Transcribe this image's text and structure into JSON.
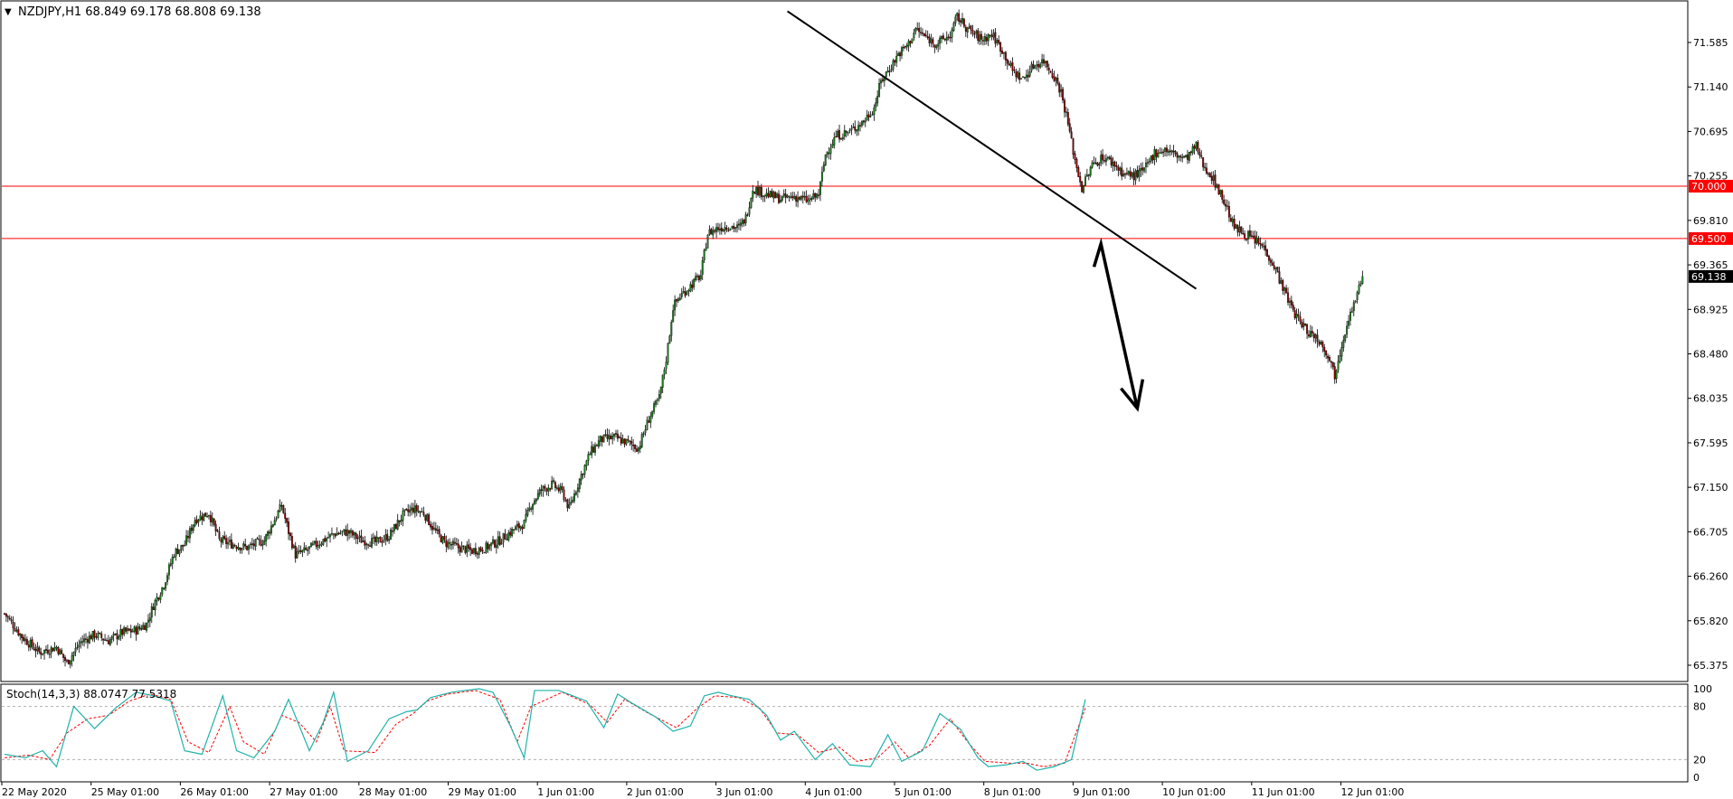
{
  "chart_data": {
    "type": "candlestick",
    "symbol_header": "NZDJPY,H1  68.849 69.178 68.808 69.138",
    "x_labels": [
      "22 May 2020",
      "25 May 01:00",
      "26 May 01:00",
      "27 May 01:00",
      "28 May 01:00",
      "29 May 01:00",
      "1 Jun 01:00",
      "2 Jun 01:00",
      "3 Jun 01:00",
      "4 Jun 01:00",
      "5 Jun 01:00",
      "8 Jun 01:00",
      "9 Jun 01:00",
      "10 Jun 01:00",
      "11 Jun 01:00",
      "12 Jun 01:00"
    ],
    "y_ticks": [
      "71.585",
      "71.140",
      "70.695",
      "70.255",
      "69.810",
      "69.365",
      "68.925",
      "68.480",
      "68.035",
      "67.595",
      "67.150",
      "66.705",
      "66.260",
      "65.820",
      "65.375"
    ],
    "price_range": [
      65.28,
      71.76
    ],
    "close_path": [
      [
        0,
        65.92
      ],
      [
        10,
        65.7
      ],
      [
        20,
        65.55
      ],
      [
        30,
        65.6
      ],
      [
        36,
        65.45
      ],
      [
        44,
        65.65
      ],
      [
        52,
        65.72
      ],
      [
        60,
        65.66
      ],
      [
        68,
        65.74
      ],
      [
        76,
        65.76
      ],
      [
        82,
        65.82
      ],
      [
        86,
        66.0
      ],
      [
        92,
        66.2
      ],
      [
        98,
        66.5
      ],
      [
        104,
        66.58
      ],
      [
        110,
        66.82
      ],
      [
        118,
        66.88
      ],
      [
        124,
        66.62
      ],
      [
        132,
        66.58
      ],
      [
        140,
        66.55
      ],
      [
        150,
        66.62
      ],
      [
        156,
        66.82
      ],
      [
        160,
        66.95
      ],
      [
        164,
        66.7
      ],
      [
        168,
        66.48
      ],
      [
        174,
        66.52
      ],
      [
        182,
        66.6
      ],
      [
        190,
        66.68
      ],
      [
        198,
        66.7
      ],
      [
        206,
        66.62
      ],
      [
        214,
        66.6
      ],
      [
        222,
        66.66
      ],
      [
        230,
        66.86
      ],
      [
        236,
        66.92
      ],
      [
        242,
        66.88
      ],
      [
        248,
        66.72
      ],
      [
        254,
        66.6
      ],
      [
        262,
        66.55
      ],
      [
        270,
        66.52
      ],
      [
        278,
        66.55
      ],
      [
        286,
        66.62
      ],
      [
        294,
        66.72
      ],
      [
        300,
        66.78
      ],
      [
        304,
        66.96
      ],
      [
        310,
        67.1
      ],
      [
        316,
        67.15
      ],
      [
        322,
        67.08
      ],
      [
        326,
        66.92
      ],
      [
        332,
        67.2
      ],
      [
        338,
        67.45
      ],
      [
        344,
        67.58
      ],
      [
        352,
        67.6
      ],
      [
        360,
        67.55
      ],
      [
        366,
        67.5
      ],
      [
        372,
        67.78
      ],
      [
        378,
        67.98
      ],
      [
        382,
        68.35
      ],
      [
        386,
        68.85
      ],
      [
        390,
        68.95
      ],
      [
        396,
        69.05
      ],
      [
        402,
        69.15
      ],
      [
        406,
        69.55
      ],
      [
        412,
        69.6
      ],
      [
        418,
        69.62
      ],
      [
        424,
        69.6
      ],
      [
        428,
        69.7
      ],
      [
        432,
        69.98
      ],
      [
        440,
        69.92
      ],
      [
        448,
        69.88
      ],
      [
        456,
        69.9
      ],
      [
        464,
        69.86
      ],
      [
        470,
        69.92
      ],
      [
        474,
        70.3
      ],
      [
        480,
        70.48
      ],
      [
        488,
        70.52
      ],
      [
        496,
        70.62
      ],
      [
        502,
        70.75
      ],
      [
        506,
        71.0
      ],
      [
        510,
        71.1
      ],
      [
        516,
        71.26
      ],
      [
        522,
        71.36
      ],
      [
        526,
        71.5
      ],
      [
        532,
        71.42
      ],
      [
        538,
        71.36
      ],
      [
        546,
        71.44
      ],
      [
        550,
        71.62
      ],
      [
        556,
        71.5
      ],
      [
        564,
        71.4
      ],
      [
        570,
        71.45
      ],
      [
        576,
        71.3
      ],
      [
        582,
        71.1
      ],
      [
        588,
        71.02
      ],
      [
        594,
        71.15
      ],
      [
        600,
        71.2
      ],
      [
        606,
        71.05
      ],
      [
        610,
        70.9
      ],
      [
        614,
        70.6
      ],
      [
        618,
        70.25
      ],
      [
        622,
        69.98
      ],
      [
        628,
        70.2
      ],
      [
        634,
        70.28
      ],
      [
        640,
        70.22
      ],
      [
        646,
        70.12
      ],
      [
        652,
        70.1
      ],
      [
        658,
        70.15
      ],
      [
        664,
        70.32
      ],
      [
        670,
        70.35
      ],
      [
        676,
        70.3
      ],
      [
        682,
        70.26
      ],
      [
        688,
        70.38
      ],
      [
        692,
        70.2
      ],
      [
        696,
        70.12
      ],
      [
        700,
        70.0
      ],
      [
        706,
        69.78
      ],
      [
        710,
        69.6
      ],
      [
        716,
        69.55
      ],
      [
        722,
        69.48
      ],
      [
        728,
        69.4
      ],
      [
        734,
        69.2
      ],
      [
        740,
        68.95
      ],
      [
        746,
        68.75
      ],
      [
        752,
        68.62
      ],
      [
        758,
        68.55
      ],
      [
        764,
        68.4
      ],
      [
        768,
        68.2
      ],
      [
        772,
        68.5
      ],
      [
        776,
        68.75
      ],
      [
        780,
        68.9
      ],
      [
        784,
        69.138
      ]
    ],
    "horizontal_levels": [
      {
        "label": "70.000",
        "price": 70.0,
        "color": "#ff0000"
      },
      {
        "label": "69.500",
        "price": 69.5,
        "color": "#ff0000"
      }
    ],
    "current_price": {
      "label": "69.138",
      "price": 69.138
    },
    "trendline": {
      "from": {
        "bar": 452,
        "price": 71.67
      },
      "to": {
        "bar": 688,
        "price": 69.02
      },
      "color": "#000000"
    },
    "arrow": {
      "points": [
        {
          "bar": 629,
          "price": 69.23
        },
        {
          "bar": 633,
          "price": 69.45
        },
        {
          "bar": 654,
          "price": 67.88
        }
      ],
      "color": "#000000"
    },
    "colors": {
      "bull": "#1a7a1a",
      "bear": "#8b0000",
      "stoch_main": "#20b2aa",
      "stoch_signal": "#ff0000"
    },
    "stoch": {
      "label": "Stoch(14,3,3) 88.0747 77.5318",
      "levels": [
        "100",
        "80",
        "20",
        "0"
      ],
      "range": [
        0,
        100
      ],
      "main_path": [
        [
          0,
          26
        ],
        [
          12,
          22
        ],
        [
          22,
          30
        ],
        [
          30,
          12
        ],
        [
          40,
          80
        ],
        [
          52,
          55
        ],
        [
          64,
          78
        ],
        [
          76,
          96
        ],
        [
          86,
          92
        ],
        [
          96,
          86
        ],
        [
          104,
          30
        ],
        [
          114,
          26
        ],
        [
          126,
          92
        ],
        [
          134,
          30
        ],
        [
          144,
          22
        ],
        [
          156,
          52
        ],
        [
          164,
          88
        ],
        [
          176,
          30
        ],
        [
          184,
          62
        ],
        [
          190,
          96
        ],
        [
          198,
          18
        ],
        [
          210,
          30
        ],
        [
          222,
          66
        ],
        [
          232,
          74
        ],
        [
          238,
          76
        ],
        [
          246,
          90
        ],
        [
          258,
          96
        ],
        [
          274,
          100
        ],
        [
          282,
          96
        ],
        [
          292,
          58
        ],
        [
          300,
          22
        ],
        [
          306,
          98
        ],
        [
          320,
          98
        ],
        [
          336,
          86
        ],
        [
          346,
          56
        ],
        [
          354,
          94
        ],
        [
          362,
          84
        ],
        [
          376,
          68
        ],
        [
          386,
          52
        ],
        [
          396,
          58
        ],
        [
          404,
          92
        ],
        [
          412,
          96
        ],
        [
          420,
          92
        ],
        [
          430,
          88
        ],
        [
          440,
          70
        ],
        [
          448,
          42
        ],
        [
          456,
          52
        ],
        [
          468,
          20
        ],
        [
          478,
          38
        ],
        [
          488,
          14
        ],
        [
          500,
          12
        ],
        [
          510,
          48
        ],
        [
          518,
          18
        ],
        [
          530,
          30
        ],
        [
          540,
          72
        ],
        [
          552,
          54
        ],
        [
          562,
          22
        ],
        [
          568,
          12
        ],
        [
          578,
          14
        ],
        [
          588,
          18
        ],
        [
          596,
          8
        ],
        [
          606,
          12
        ],
        [
          616,
          20
        ],
        [
          624,
          88
        ]
      ],
      "signal_path": [
        [
          0,
          22
        ],
        [
          14,
          25
        ],
        [
          26,
          20
        ],
        [
          36,
          50
        ],
        [
          48,
          66
        ],
        [
          60,
          70
        ],
        [
          72,
          86
        ],
        [
          84,
          94
        ],
        [
          96,
          88
        ],
        [
          106,
          40
        ],
        [
          118,
          28
        ],
        [
          130,
          80
        ],
        [
          138,
          40
        ],
        [
          150,
          26
        ],
        [
          160,
          70
        ],
        [
          170,
          62
        ],
        [
          180,
          40
        ],
        [
          188,
          80
        ],
        [
          196,
          30
        ],
        [
          214,
          28
        ],
        [
          226,
          60
        ],
        [
          236,
          72
        ],
        [
          244,
          86
        ],
        [
          256,
          94
        ],
        [
          272,
          98
        ],
        [
          286,
          88
        ],
        [
          296,
          40
        ],
        [
          304,
          80
        ],
        [
          322,
          96
        ],
        [
          338,
          82
        ],
        [
          348,
          62
        ],
        [
          358,
          88
        ],
        [
          372,
          72
        ],
        [
          388,
          56
        ],
        [
          400,
          78
        ],
        [
          410,
          92
        ],
        [
          424,
          90
        ],
        [
          436,
          78
        ],
        [
          446,
          50
        ],
        [
          458,
          48
        ],
        [
          470,
          28
        ],
        [
          482,
          34
        ],
        [
          492,
          18
        ],
        [
          504,
          22
        ],
        [
          514,
          40
        ],
        [
          522,
          22
        ],
        [
          534,
          36
        ],
        [
          546,
          66
        ],
        [
          556,
          40
        ],
        [
          566,
          18
        ],
        [
          580,
          16
        ],
        [
          590,
          16
        ],
        [
          600,
          12
        ],
        [
          612,
          16
        ],
        [
          624,
          78
        ]
      ]
    }
  }
}
